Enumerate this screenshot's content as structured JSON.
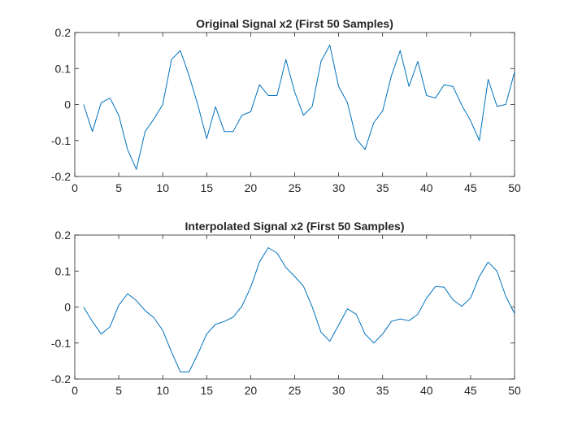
{
  "colors": {
    "series": "#0072BD",
    "axes": "#262626",
    "background": "#ffffff"
  },
  "chart_data": [
    {
      "type": "line",
      "title": "Original Signal x2 (First 50 Samples)",
      "xlabel": "",
      "ylabel": "",
      "xlim": [
        0,
        50
      ],
      "ylim": [
        -0.2,
        0.2
      ],
      "grid": false,
      "xticks": [
        0,
        5,
        10,
        15,
        20,
        25,
        30,
        35,
        40,
        45,
        50
      ],
      "xtick_labels": [
        "0",
        "5",
        "10",
        "15",
        "20",
        "25",
        "30",
        "35",
        "40",
        "45",
        "50"
      ],
      "yticks": [
        -0.2,
        -0.1,
        0,
        0.1,
        0.2
      ],
      "ytick_labels": [
        "-0.2",
        "-0.1",
        "0",
        "0.1",
        "0.2"
      ],
      "x": [
        1,
        2,
        3,
        4,
        5,
        6,
        7,
        8,
        9,
        10,
        11,
        12,
        13,
        14,
        15,
        16,
        17,
        18,
        19,
        20,
        21,
        22,
        23,
        24,
        25,
        26,
        27,
        28,
        29,
        30,
        31,
        32,
        33,
        34,
        35,
        36,
        37,
        38,
        39,
        40,
        41,
        42,
        43,
        44,
        45,
        46,
        47,
        48,
        49,
        50
      ],
      "series": [
        {
          "values": [
            0.0,
            -0.075,
            0.005,
            0.018,
            -0.03,
            -0.125,
            -0.18,
            -0.075,
            -0.04,
            0.0,
            0.125,
            0.15,
            0.08,
            -0.002,
            -0.095,
            -0.006,
            -0.075,
            -0.075,
            -0.03,
            -0.02,
            0.055,
            0.025,
            0.025,
            0.125,
            0.035,
            -0.03,
            -0.005,
            0.12,
            0.165,
            0.05,
            0.005,
            -0.095,
            -0.125,
            -0.05,
            -0.018,
            0.08,
            0.15,
            0.05,
            0.12,
            0.025,
            0.018,
            0.055,
            0.05,
            -0.002,
            -0.045,
            -0.1,
            0.07,
            -0.005,
            0.0,
            0.09
          ]
        }
      ]
    },
    {
      "type": "line",
      "title": "Interpolated Signal x2 (First 50 Samples)",
      "xlabel": "",
      "ylabel": "",
      "xlim": [
        0,
        50
      ],
      "ylim": [
        -0.2,
        0.2
      ],
      "grid": false,
      "xticks": [
        0,
        5,
        10,
        15,
        20,
        25,
        30,
        35,
        40,
        45,
        50
      ],
      "xtick_labels": [
        "0",
        "5",
        "10",
        "15",
        "20",
        "25",
        "30",
        "35",
        "40",
        "45",
        "50"
      ],
      "yticks": [
        -0.2,
        -0.1,
        0,
        0.1,
        0.2
      ],
      "ytick_labels": [
        "-0.2",
        "-0.1",
        "0",
        "0.1",
        "0.2"
      ],
      "x": [
        1,
        2,
        3,
        4,
        5,
        6,
        7,
        8,
        9,
        10,
        11,
        12,
        13,
        14,
        15,
        16,
        17,
        18,
        19,
        20,
        21,
        22,
        23,
        24,
        25,
        26,
        27,
        28,
        29,
        30,
        31,
        32,
        33,
        34,
        35,
        36,
        37,
        38,
        39,
        40,
        41,
        42,
        43,
        44,
        45,
        46,
        47,
        48,
        49,
        50
      ],
      "series": [
        {
          "values": [
            0.0,
            -0.04,
            -0.075,
            -0.055,
            0.005,
            0.037,
            0.018,
            -0.01,
            -0.03,
            -0.065,
            -0.125,
            -0.18,
            -0.18,
            -0.13,
            -0.075,
            -0.048,
            -0.04,
            -0.028,
            0.002,
            0.055,
            0.125,
            0.165,
            0.15,
            0.11,
            0.085,
            0.058,
            0.0,
            -0.07,
            -0.095,
            -0.05,
            -0.005,
            -0.02,
            -0.075,
            -0.1,
            -0.075,
            -0.04,
            -0.033,
            -0.038,
            -0.02,
            0.025,
            0.057,
            0.055,
            0.02,
            0.002,
            0.025,
            0.085,
            0.125,
            0.1,
            0.03,
            -0.018
          ]
        }
      ]
    }
  ]
}
